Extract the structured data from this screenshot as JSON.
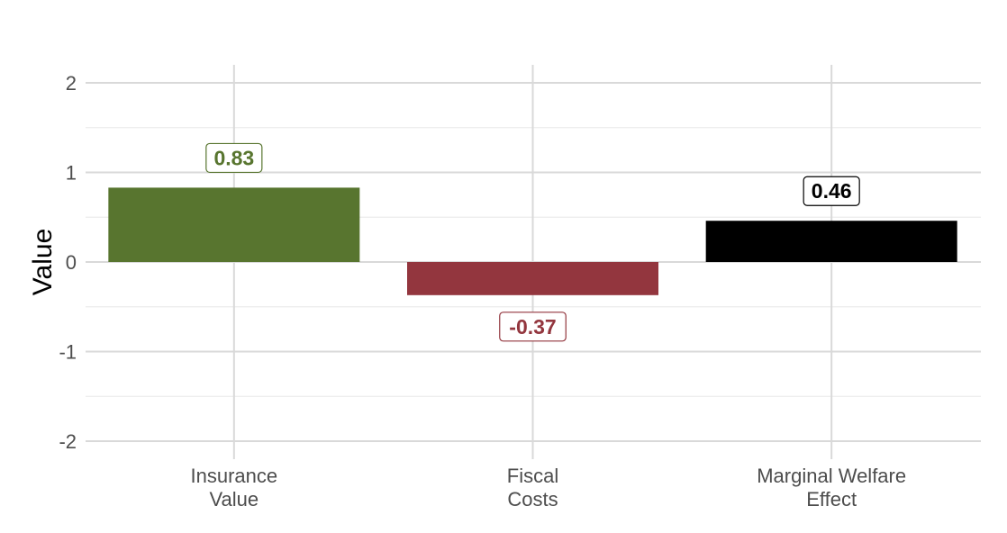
{
  "chart_data": {
    "type": "bar",
    "title": "",
    "xlabel": "",
    "ylabel": "Value",
    "ylim": [
      -2.2,
      2.2
    ],
    "yticks": [
      "-2",
      "-1",
      "0",
      "1",
      "2"
    ],
    "grid": true,
    "categories": [
      [
        "Insurance",
        "Value"
      ],
      [
        "Fiscal",
        "Costs"
      ],
      [
        "Marginal Welfare",
        "Effect"
      ]
    ],
    "values": [
      0.83,
      -0.37,
      0.46
    ],
    "labels": [
      "0.83",
      "-0.37",
      "0.46"
    ],
    "colors": [
      "#58752f",
      "#93363e",
      "#000000"
    ]
  }
}
